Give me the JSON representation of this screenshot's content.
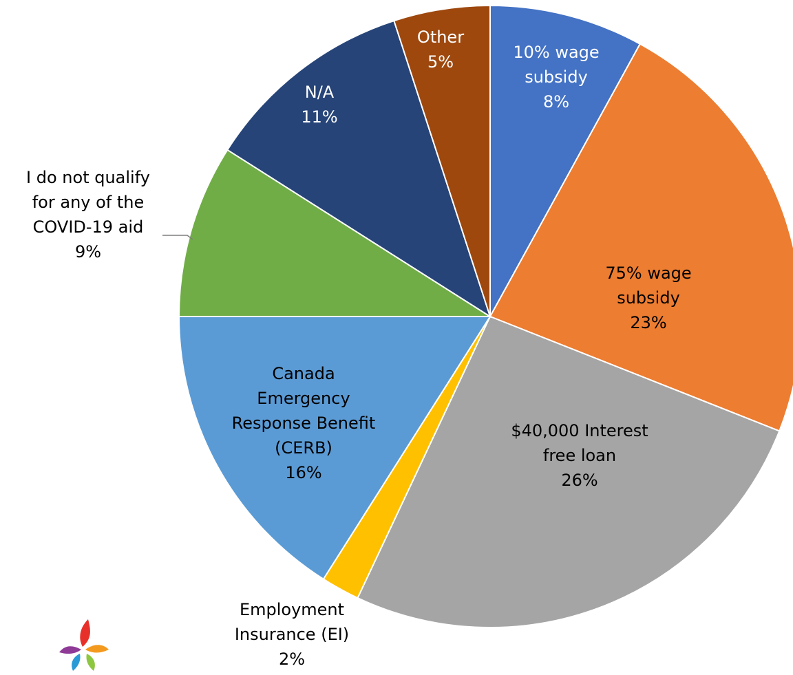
{
  "chart_data": {
    "type": "pie",
    "categories": [
      "10% wage subsidy",
      "75% wage subsidy",
      "$40,000 Interest free loan",
      "Employment Insurance (EI)",
      "Canada Emergency Response Benefit (CERB)",
      "I do not qualify for any of the COVID-19 aid",
      "N/A",
      "Other"
    ],
    "values": [
      8,
      23,
      26,
      2,
      16,
      9,
      11,
      5
    ],
    "value_labels": [
      "8%",
      "23%",
      "26%",
      "2%",
      "16%",
      "9%",
      "11%",
      "5%"
    ],
    "colors": [
      "#4472c4",
      "#ed7d31",
      "#a5a5a5",
      "#ffc000",
      "#5b9bd5",
      "#70ad47",
      "#264478",
      "#9e480e"
    ]
  }
}
